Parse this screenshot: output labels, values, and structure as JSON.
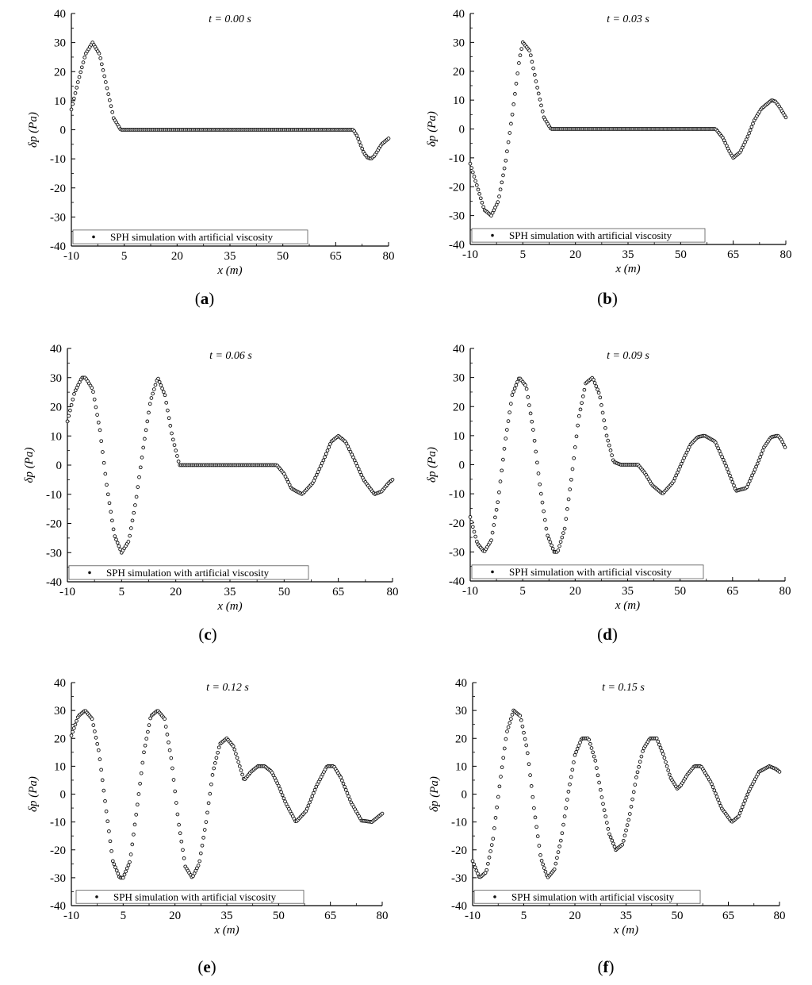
{
  "figure": {
    "background": "#ffffff",
    "marker_color": "#111111"
  },
  "chart_data": [
    {
      "type": "scatter",
      "panel_label": "a",
      "time_label": "t = 0.00 s",
      "xlabel": "x (m)",
      "ylabel": "δp (Pa)",
      "xlim": [
        -10,
        80
      ],
      "ylim": [
        -40,
        40
      ],
      "xticks": [
        "-10",
        "5",
        "20",
        "35",
        "50",
        "65",
        "80"
      ],
      "yticks": [
        "-40",
        "-30",
        "-20",
        "-10",
        "0",
        "10",
        "20",
        "30",
        "40"
      ],
      "legend": "SPH simulation with artificial viscosity",
      "x": [
        -10,
        -8,
        -6,
        -4,
        -2,
        0,
        2,
        4,
        6,
        8,
        10,
        15,
        20,
        25,
        30,
        35,
        40,
        45,
        50,
        55,
        60,
        65,
        70,
        71,
        72,
        73,
        74,
        75,
        76,
        77,
        78,
        79,
        80
      ],
      "y": [
        7,
        17,
        26,
        30,
        26,
        15,
        4,
        0,
        0,
        0,
        0,
        0,
        0,
        0,
        0,
        0,
        0,
        0,
        0,
        0,
        0,
        0,
        0,
        -2,
        -5,
        -8,
        -9.5,
        -10,
        -9,
        -7,
        -5,
        -4,
        -3
      ]
    },
    {
      "type": "scatter",
      "panel_label": "b",
      "time_label": "t = 0.03 s",
      "xlabel": "x (m)",
      "ylabel": "δp (Pa)",
      "xlim": [
        -10,
        80
      ],
      "ylim": [
        -40,
        40
      ],
      "xticks": [
        "-10",
        "5",
        "20",
        "35",
        "50",
        "65",
        "80"
      ],
      "yticks": [
        "-40",
        "-30",
        "-20",
        "-10",
        "0",
        "10",
        "20",
        "30",
        "40"
      ],
      "legend": "SPH simulation with artificial viscosity",
      "x": [
        -10,
        -8,
        -6,
        -4,
        -2,
        0,
        2,
        4,
        5,
        7,
        9,
        11,
        13,
        15,
        20,
        30,
        40,
        50,
        58,
        60,
        62,
        64,
        65,
        67,
        69,
        71,
        73,
        75,
        76,
        77,
        78,
        79,
        80
      ],
      "y": [
        -12,
        -20,
        -28,
        -30,
        -25,
        -12,
        5,
        24,
        30,
        27,
        15,
        4,
        0,
        0,
        0,
        0,
        0,
        0,
        0,
        0,
        -3,
        -8,
        -10,
        -8,
        -3,
        3,
        7,
        9,
        10,
        9.5,
        8,
        6,
        4
      ]
    },
    {
      "type": "scatter",
      "panel_label": "c",
      "time_label": "t = 0.06 s",
      "xlabel": "x (m)",
      "ylabel": "δp (Pa)",
      "xlim": [
        -10,
        80
      ],
      "ylim": [
        -40,
        40
      ],
      "xticks": [
        "-10",
        "5",
        "20",
        "35",
        "50",
        "65",
        "80"
      ],
      "yticks": [
        "-40",
        "-30",
        "-20",
        "-10",
        "0",
        "10",
        "20",
        "30",
        "40"
      ],
      "legend": "SPH simulation with artificial viscosity",
      "x": [
        -10,
        -8,
        -6,
        -5,
        -3,
        -1,
        1,
        3,
        5,
        7,
        9,
        11,
        13,
        15,
        17,
        19,
        21,
        25,
        30,
        40,
        48,
        50,
        52,
        55,
        58,
        61,
        63,
        65,
        67,
        69,
        72,
        75,
        77,
        79,
        80
      ],
      "y": [
        15,
        25,
        30,
        30,
        26,
        12,
        -8,
        -24,
        -30,
        -26,
        -12,
        6,
        22,
        30,
        24,
        10,
        0,
        0,
        0,
        0,
        0,
        -3,
        -8,
        -10,
        -6,
        2,
        8,
        10,
        8,
        3,
        -5,
        -10,
        -9,
        -6,
        -5
      ]
    },
    {
      "type": "scatter",
      "panel_label": "d",
      "time_label": "t = 0.09 s",
      "xlabel": "x (m)",
      "ylabel": "δp (Pa)",
      "xlim": [
        -10,
        80
      ],
      "ylim": [
        -40,
        40
      ],
      "xticks": [
        "-10",
        "5",
        "20",
        "35",
        "50",
        "65",
        "80"
      ],
      "yticks": [
        "-40",
        "-30",
        "-20",
        "-10",
        "0",
        "10",
        "20",
        "30",
        "40"
      ],
      "legend": "SPH simulation with artificial viscosity",
      "x": [
        -10,
        -8,
        -6,
        -4,
        -2,
        0,
        2,
        4,
        6,
        8,
        10,
        12,
        14,
        15,
        17,
        19,
        21,
        23,
        25,
        27,
        29,
        31,
        33,
        35,
        38,
        40,
        42,
        45,
        48,
        51,
        53,
        55,
        57,
        60,
        63,
        66,
        69,
        72,
        74,
        76,
        78,
        79,
        80
      ],
      "y": [
        -18,
        -27,
        -30,
        -26,
        -12,
        8,
        24,
        30,
        27,
        12,
        -8,
        -24,
        -30,
        -30,
        -22,
        -4,
        16,
        28,
        30,
        24,
        10,
        1,
        0,
        0,
        0,
        -3,
        -7,
        -10,
        -6,
        2,
        7,
        9.5,
        10,
        8,
        0,
        -9,
        -8,
        0,
        6,
        9.5,
        10,
        8.5,
        6
      ]
    },
    {
      "type": "scatter",
      "panel_label": "e",
      "time_label": "t = 0.12 s",
      "xlabel": "x (m)",
      "ylabel": "δp (Pa)",
      "xlim": [
        -10,
        80
      ],
      "ylim": [
        -40,
        40
      ],
      "xticks": [
        "-10",
        "5",
        "20",
        "35",
        "50",
        "65",
        "80"
      ],
      "yticks": [
        "-40",
        "-30",
        "-20",
        "-10",
        "0",
        "10",
        "20",
        "30",
        "40"
      ],
      "legend": "SPH simulation with artificial viscosity",
      "x": [
        -10,
        -8,
        -6,
        -4,
        -2,
        0,
        2,
        4,
        5,
        7,
        9,
        11,
        13,
        15,
        17,
        19,
        21,
        23,
        25,
        27,
        29,
        31,
        33,
        35,
        37,
        38,
        40,
        42,
        44,
        46,
        48,
        50,
        52,
        55,
        58,
        61,
        64,
        66,
        68,
        71,
        74,
        77,
        79,
        80
      ],
      "y": [
        21,
        28,
        30,
        27,
        15,
        -5,
        -24,
        -30,
        -30,
        -24,
        -5,
        15,
        28,
        30,
        27,
        12,
        -10,
        -26,
        -30,
        -25,
        -10,
        8,
        18,
        20,
        17,
        13,
        5,
        8,
        10,
        10,
        8,
        3,
        -3,
        -10,
        -6,
        3,
        10,
        10,
        6,
        -3,
        -9.5,
        -10,
        -8,
        -7
      ]
    },
    {
      "type": "scatter",
      "panel_label": "f",
      "time_label": "t = 0.15 s",
      "xlabel": "x (m)",
      "ylabel": "δp (Pa)",
      "xlim": [
        -10,
        80
      ],
      "ylim": [
        -40,
        40
      ],
      "xticks": [
        "-10",
        "5",
        "20",
        "35",
        "50",
        "65",
        "80"
      ],
      "yticks": [
        "-40",
        "-30",
        "-20",
        "-10",
        "0",
        "10",
        "20",
        "30",
        "40"
      ],
      "legend": "SPH simulation with artificial viscosity",
      "x": [
        -10,
        -8,
        -6,
        -4,
        -2,
        0,
        2,
        4,
        6,
        8,
        10,
        12,
        14,
        16,
        18,
        20,
        22,
        24,
        26,
        28,
        30,
        32,
        34,
        36,
        38,
        40,
        42,
        44,
        46,
        48,
        50,
        51,
        53,
        55,
        57,
        60,
        63,
        66,
        68,
        71,
        74,
        77,
        79,
        80
      ],
      "y": [
        -24,
        -30,
        -28,
        -16,
        4,
        22,
        30,
        28,
        16,
        -5,
        -23,
        -30,
        -27,
        -16,
        0,
        14,
        20,
        20,
        12,
        -2,
        -14,
        -20,
        -18,
        -8,
        6,
        16,
        20,
        20,
        14,
        6,
        2,
        3,
        7,
        10,
        10,
        4,
        -5,
        -10,
        -8,
        1,
        8,
        10,
        9,
        8
      ]
    }
  ]
}
